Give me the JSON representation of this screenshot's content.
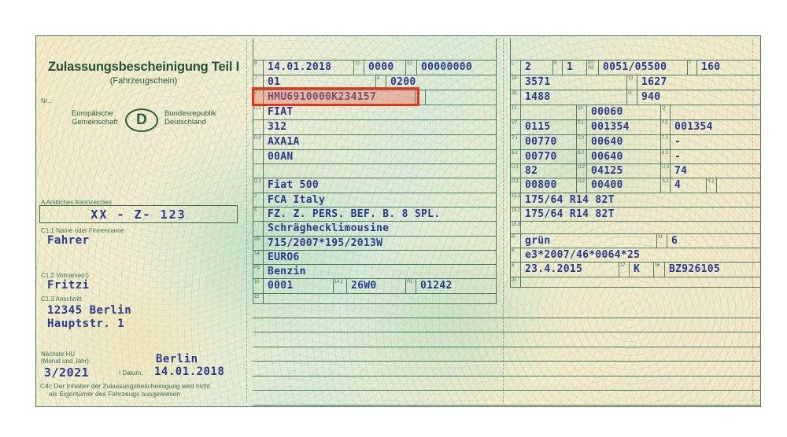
{
  "colors": {
    "accent_red": "#e0351f",
    "value_blue": "#2b3990",
    "label_green": "#3f6f57",
    "line_green": "#2d5f48",
    "paper_cream": "#f2ecd2",
    "paper_green": "#dcecdc"
  },
  "left": {
    "title": "Zulassungsbescheinigung Teil I",
    "subtitle": "(Fahrzeugschein)",
    "nr_label": "Nr.:",
    "eu_text": "Europäische\nGemeinschaft",
    "country_letter": "D",
    "state_text": "Bundesrepublik\nDeutschland",
    "plate_label": "A Amtliches Kennzeichen",
    "plate_value": "XX - Z- 123",
    "c11_label": "C1.1 Name oder Firmenname",
    "c11_value": "Fahrer",
    "c12_label": "C1.2 Vorname(n)",
    "c12_value": "Fritzi",
    "c13_label": "C1.3 Anschnitt",
    "c13_line1": "12345 Berlin",
    "c13_line2": "Hauptstr. 1",
    "hu_label_line1": "Nächste HU",
    "hu_label_line2": "(Monat und Jahr):",
    "hu_value": "3/2021",
    "issue_city": "Berlin",
    "date_label": "I Datum:",
    "date_value": "14.01.2018",
    "c4c_line1": "C4c Der Inhaber der Zulassungsbescheinigung wird nicht",
    "c4c_line2": "als Eigentümer des Fahrzeugs ausgewiesen"
  },
  "middle": {
    "rows": [
      {
        "h": 19,
        "cells": [
          [
            "l",
            "B",
            13
          ],
          [
            "v",
            "14.01.2018",
            114
          ],
          [
            "l",
            "21",
            14
          ],
          [
            "v",
            "0000",
            52
          ],
          [
            "l",
            "22",
            15
          ],
          [
            "v",
            "00000000",
            0
          ]
        ]
      },
      {
        "h": 19,
        "cells": [
          [
            "l",
            "J",
            13
          ],
          [
            "v",
            "01",
            142
          ],
          [
            "l",
            "4",
            14
          ],
          [
            "v",
            "0200",
            0
          ]
        ]
      },
      {
        "h": 19,
        "cells": [
          [
            "l",
            "E",
            13
          ],
          [
            "v",
            "HMU6910000K234157",
            192
          ],
          [
            "l",
            "3",
            14
          ],
          [
            "v",
            "",
            0
          ]
        ]
      },
      {
        "h": 19,
        "cells": [
          [
            "l",
            "D.1",
            13
          ],
          [
            "v",
            "FIAT",
            0
          ]
        ]
      },
      {
        "h": 19,
        "cells": [
          [
            "l",
            "",
            13
          ],
          [
            "v",
            "312",
            0
          ]
        ]
      },
      {
        "h": 19,
        "cells": [
          [
            "l",
            "D.2",
            13
          ],
          [
            "v",
            "AXA1A",
            0
          ]
        ]
      },
      {
        "h": 18,
        "cells": [
          [
            "l",
            "",
            13
          ],
          [
            "v",
            "00AN",
            0
          ]
        ]
      },
      {
        "h": 18,
        "cells": [
          [
            "l",
            "",
            13
          ],
          [
            "v",
            "",
            0
          ]
        ]
      },
      {
        "h": 19,
        "cells": [
          [
            "l",
            "D.3",
            13
          ],
          [
            "v",
            "Fiat 500",
            0
          ]
        ]
      },
      {
        "h": 18,
        "cells": [
          [
            "l",
            "2",
            13
          ],
          [
            "v",
            "FCA Italy",
            0
          ]
        ]
      },
      {
        "h": 18,
        "cells": [
          [
            "l",
            "5",
            13
          ],
          [
            "v",
            "FZ. Z. PERS. BEF. B. 8 SPL.",
            0
          ]
        ]
      },
      {
        "h": 19,
        "cells": [
          [
            "l",
            "",
            13
          ],
          [
            "v",
            "Schräghecklimousine",
            0
          ]
        ]
      },
      {
        "h": 18,
        "cells": [
          [
            "l",
            "V9",
            13
          ],
          [
            "v",
            "715/2007*195/2013W",
            0
          ]
        ]
      },
      {
        "h": 18,
        "cells": [
          [
            "l",
            "14",
            13
          ],
          [
            "v",
            "EURO6",
            0
          ]
        ]
      },
      {
        "h": 18,
        "cells": [
          [
            "l",
            "P3",
            13
          ],
          [
            "v",
            "Benzin",
            0
          ]
        ]
      },
      {
        "h": 19,
        "cells": [
          [
            "l",
            "10",
            13
          ],
          [
            "v",
            "0001",
            88
          ],
          [
            "l",
            "14.1",
            18
          ],
          [
            "v",
            "26W0",
            74
          ],
          [
            "l",
            "P1",
            14
          ],
          [
            "v",
            "01242",
            0
          ]
        ]
      },
      {
        "h": 13,
        "cells": [
          [
            "l",
            "22",
            13
          ],
          [
            "v",
            "",
            0
          ]
        ]
      }
    ]
  },
  "right": {
    "rows": [
      {
        "h": 19,
        "cells": [
          [
            "l",
            "L",
            13
          ],
          [
            "v",
            "2",
            40
          ],
          [
            "l",
            "9",
            13
          ],
          [
            "v",
            "1",
            30
          ],
          [
            "l",
            "P2\nP4",
            16
          ],
          [
            "v",
            "0051/05500",
            112
          ],
          [
            "l",
            "T",
            13
          ],
          [
            "v",
            "160",
            0
          ]
        ]
      },
      {
        "h": 19,
        "cells": [
          [
            "l",
            "18",
            13
          ],
          [
            "v",
            "3571",
            134
          ],
          [
            "l",
            "19",
            14
          ],
          [
            "v",
            "1627",
            0
          ]
        ]
      },
      {
        "h": 19,
        "cells": [
          [
            "l",
            "20",
            13
          ],
          [
            "v",
            "1488",
            134
          ],
          [
            "l",
            "G",
            14
          ],
          [
            "v",
            "940",
            0
          ]
        ]
      },
      {
        "h": 19,
        "cells": [
          [
            "l",
            "12",
            13
          ],
          [
            "v",
            "",
            70
          ],
          [
            "l",
            "13",
            14
          ],
          [
            "v",
            "00060",
            93
          ],
          [
            "l",
            "Q",
            13
          ],
          [
            "v",
            "",
            0
          ]
        ]
      },
      {
        "h": 19,
        "cells": [
          [
            "l",
            "V7",
            13
          ],
          [
            "v",
            "0115",
            70
          ],
          [
            "l",
            "F.1",
            14
          ],
          [
            "v",
            "001354",
            93
          ],
          [
            "l",
            "F.2",
            13
          ],
          [
            "v",
            "001354",
            0
          ]
        ]
      },
      {
        "h": 19,
        "cells": [
          [
            "l",
            "7.1",
            13
          ],
          [
            "v",
            "00770",
            70
          ],
          [
            "l",
            "7.2",
            14
          ],
          [
            "v",
            "00640",
            93
          ],
          [
            "l",
            "7.3",
            13
          ],
          [
            "v",
            "-",
            0
          ]
        ]
      },
      {
        "h": 18,
        "cells": [
          [
            "l",
            "8.1",
            13
          ],
          [
            "v",
            "00770",
            70
          ],
          [
            "l",
            "8.2",
            14
          ],
          [
            "v",
            "00640",
            93
          ],
          [
            "l",
            "8.3",
            13
          ],
          [
            "v",
            "-",
            0
          ]
        ]
      },
      {
        "h": 18,
        "cells": [
          [
            "l",
            "U.1",
            13
          ],
          [
            "v",
            "82",
            70
          ],
          [
            "l",
            "U.2",
            14
          ],
          [
            "v",
            "04125",
            93
          ],
          [
            "l",
            "U.3",
            13
          ],
          [
            "v",
            "74",
            0
          ]
        ]
      },
      {
        "h": 19,
        "cells": [
          [
            "l",
            "O.1",
            13
          ],
          [
            "v",
            "00800",
            70
          ],
          [
            "l",
            "O.2",
            14
          ],
          [
            "v",
            "00400",
            93
          ],
          [
            "l",
            "S.1",
            13
          ],
          [
            "v",
            "4",
            45
          ],
          [
            "l",
            "S.2",
            14
          ],
          [
            "v",
            "",
            0
          ]
        ]
      },
      {
        "h": 18,
        "cells": [
          [
            "l",
            "15.1",
            13
          ],
          [
            "v",
            "175/64 R14 82T",
            0
          ]
        ]
      },
      {
        "h": 18,
        "cells": [
          [
            "l",
            "15.2",
            13
          ],
          [
            "v",
            "175/64 R14 82T",
            0
          ]
        ]
      },
      {
        "h": 16,
        "cells": [
          [
            "l",
            "15.3",
            13
          ],
          [
            "v",
            "",
            0
          ]
        ]
      },
      {
        "h": 18,
        "cells": [
          [
            "l",
            "R",
            13
          ],
          [
            "v",
            "grün",
            172
          ],
          [
            "l",
            "11",
            14
          ],
          [
            "v",
            "6",
            0
          ]
        ]
      },
      {
        "h": 18,
        "cells": [
          [
            "l",
            "K",
            13
          ],
          [
            "v",
            "e3*2007/46*0064*25",
            0
          ]
        ]
      },
      {
        "h": 19,
        "cells": [
          [
            "l",
            "6",
            13
          ],
          [
            "v",
            "23.4.2015",
            124
          ],
          [
            "l",
            "17",
            14
          ],
          [
            "v",
            "K",
            30
          ],
          [
            "l",
            "16",
            15
          ],
          [
            "v",
            "BZ926105",
            0
          ]
        ]
      },
      {
        "h": 13,
        "cells": [
          [
            "l",
            "21",
            13
          ],
          [
            "v",
            "",
            0
          ]
        ]
      }
    ]
  }
}
